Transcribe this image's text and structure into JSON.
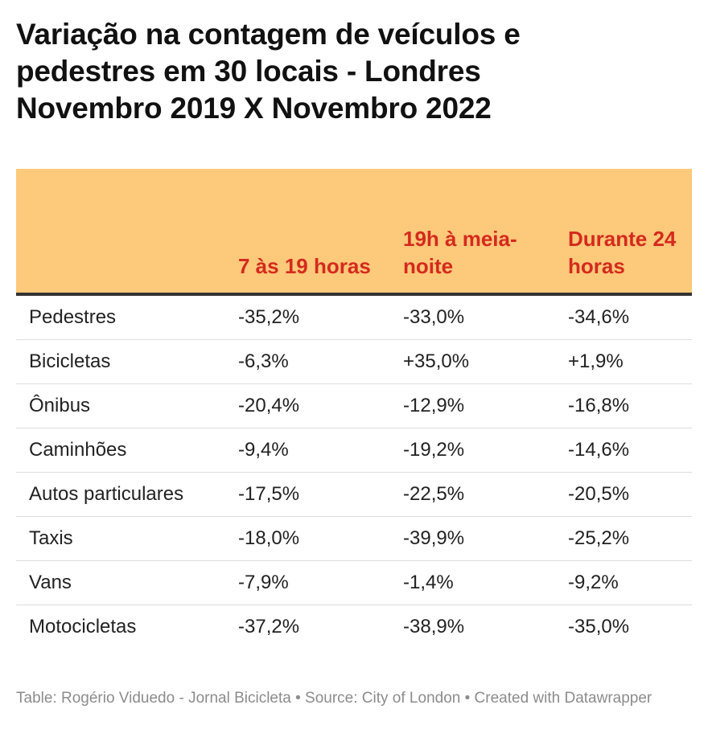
{
  "title": {
    "line1": "Variação na contagem de veículos e",
    "line2": "pedestres em 30 locais - Londres",
    "line3": "Novembro 2019 X Novembro 2022"
  },
  "chart_data": {
    "type": "table",
    "columns": [
      "",
      "7 às 19 horas",
      "19h à meia-noite",
      "Durante 24 horas"
    ],
    "rows": [
      [
        "Pedestres",
        "-35,2%",
        "-33,0%",
        "-34,6%"
      ],
      [
        "Bicicletas",
        "-6,3%",
        "+35,0%",
        "+1,9%"
      ],
      [
        "Ônibus",
        "-20,4%",
        "-12,9%",
        "-16,8%"
      ],
      [
        "Caminhões",
        "-9,4%",
        "-19,2%",
        "-14,6%"
      ],
      [
        "Autos particulares",
        "-17,5%",
        "-22,5%",
        "-20,5%"
      ],
      [
        "Taxis",
        "-18,0%",
        "-39,9%",
        "-25,2%"
      ],
      [
        "Vans",
        "-7,9%",
        "-1,4%",
        "-9,2%"
      ],
      [
        "Motocicletas",
        "-37,2%",
        "-38,9%",
        "-35,0%"
      ]
    ]
  },
  "colors": {
    "header_bg": "#fdc97a",
    "header_text": "#d52a1e",
    "header_rule": "#333333"
  },
  "footer": {
    "text": "Table: Rogério Viduedo - Jornal Bicicleta • Source: City of London • Created with Datawrapper"
  }
}
